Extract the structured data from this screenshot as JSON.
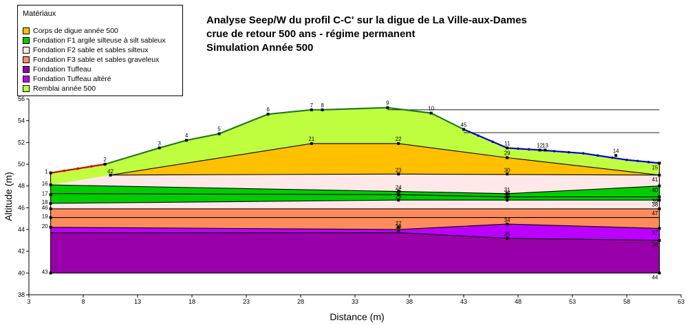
{
  "legend": {
    "title": "Matériaux",
    "items": [
      {
        "label": "Corps de digue année 500",
        "color": "#FFC000"
      },
      {
        "label": "Fondation F1 argile silteuse à silt sableux",
        "color": "#00CC00"
      },
      {
        "label": "Fondation F2 sable et sables silteux",
        "color": "#FFE8E8"
      },
      {
        "label": "Fondation F3 sable et sables graveleux",
        "color": "#FF8C5A"
      },
      {
        "label": "Fondation Tuffeau",
        "color": "#9900AA"
      },
      {
        "label": "Fondation Tuffeau altéré",
        "color": "#BB00FF"
      },
      {
        "label": "Remblai année 500",
        "color": "#C0FF40"
      }
    ]
  },
  "title": {
    "line1": "Analyse Seep/W du profil C-C' sur la digue de La Ville-aux-Dames",
    "line2": "crue de retour 500 ans - régime permanent",
    "line3": "Simulation Année 500"
  },
  "chart_data": {
    "type": "cross-section",
    "xlabel": "Distance (m)",
    "ylabel": "Altitude (m)",
    "xlim": [
      3,
      63
    ],
    "ylim": [
      38,
      56
    ],
    "xticks": [
      "3",
      "8",
      "13",
      "18",
      "23",
      "28",
      "33",
      "38",
      "43",
      "48",
      "53",
      "58",
      "63"
    ],
    "yticks": [
      "38",
      "40",
      "42",
      "44",
      "46",
      "48",
      "50",
      "52",
      "54",
      "56"
    ],
    "layers": [
      {
        "name": "Fondation Tuffeau",
        "color": "#9900AA",
        "top": [
          [
            5,
            43.7
          ],
          [
            37,
            43.7
          ],
          [
            47,
            43.2
          ],
          [
            61,
            43.0
          ]
        ],
        "bottom": [
          [
            5,
            40.0
          ],
          [
            61,
            40.0
          ]
        ]
      },
      {
        "name": "Fondation Tuffeau altéré",
        "color": "#BB00FF",
        "top": [
          [
            5,
            44.2
          ],
          [
            37,
            44.0
          ],
          [
            47,
            44.5
          ],
          [
            61,
            44.1
          ]
        ],
        "bottom": [
          [
            5,
            43.7
          ],
          [
            37,
            43.7
          ],
          [
            47,
            43.2
          ],
          [
            61,
            43.0
          ]
        ]
      },
      {
        "name": "Fondation F3 sable et sables graveleux",
        "color": "#FF8C5A",
        "top": [
          [
            5,
            45.9
          ],
          [
            61,
            45.9
          ]
        ],
        "bottom": [
          [
            5,
            44.2
          ],
          [
            37,
            44.0
          ],
          [
            47,
            44.5
          ],
          [
            61,
            44.1
          ]
        ]
      },
      {
        "name": "Fondation F2 sable et sables silteux",
        "color": "#FFE8E8",
        "top": [
          [
            5,
            46.4
          ],
          [
            37,
            46.7
          ],
          [
            61,
            46.7
          ]
        ],
        "bottom": [
          [
            5,
            45.9
          ],
          [
            61,
            45.9
          ]
        ]
      },
      {
        "name": "Fondation F1 argile silteuse à silt sableux",
        "color": "#00CC00",
        "top": [
          [
            5,
            48.1
          ],
          [
            37,
            47.5
          ],
          [
            47,
            47.3
          ],
          [
            61,
            48.0
          ]
        ],
        "bottom": [
          [
            5,
            46.4
          ],
          [
            37,
            46.7
          ],
          [
            61,
            46.7
          ]
        ]
      },
      {
        "name": "Fondation F2 sable et sables silteux",
        "color": "#FFE8E8",
        "top": [
          [
            5,
            48.1
          ],
          [
            10.5,
            49.0
          ],
          [
            37,
            49.1
          ],
          [
            61,
            49.0
          ]
        ],
        "bottom": [
          [
            5,
            48.1
          ],
          [
            37,
            47.5
          ],
          [
            47,
            47.3
          ],
          [
            61,
            48.0
          ]
        ]
      },
      {
        "name": "Corps de digue année 500",
        "color": "#FFC000",
        "top": [
          [
            10.5,
            49.0
          ],
          [
            29,
            51.9
          ],
          [
            37,
            51.9
          ],
          [
            47,
            50.6
          ],
          [
            61,
            49.0
          ]
        ],
        "bottom": [
          [
            61,
            49.0
          ],
          [
            37,
            49.1
          ],
          [
            10.5,
            49.0
          ]
        ]
      },
      {
        "name": "Remblai année 500",
        "color": "#C0FF40",
        "top": [
          [
            5,
            49.2
          ],
          [
            10,
            50.0
          ],
          [
            15,
            51.5
          ],
          [
            17.5,
            52.2
          ],
          [
            20.5,
            52.8
          ],
          [
            25,
            54.6
          ],
          [
            29,
            55.0
          ],
          [
            30,
            55.0
          ],
          [
            36,
            55.2
          ],
          [
            40,
            54.7
          ],
          [
            43,
            53.2
          ],
          [
            47,
            51.5
          ],
          [
            50,
            51.3
          ],
          [
            54,
            51.0
          ],
          [
            58,
            50.4
          ],
          [
            61,
            50.1
          ]
        ],
        "bottom": [
          [
            61,
            49.0
          ],
          [
            47,
            50.6
          ],
          [
            37,
            51.9
          ],
          [
            29,
            51.9
          ],
          [
            10.5,
            49.0
          ],
          [
            5,
            48.1
          ]
        ]
      }
    ],
    "interfaces": [
      [
        [
          5,
          48.1
        ],
        [
          37,
          47.5
        ],
        [
          47,
          47.3
        ],
        [
          61,
          48.0
        ]
      ],
      [
        [
          5,
          46.4
        ],
        [
          37,
          46.7
        ],
        [
          61,
          46.7
        ]
      ],
      [
        [
          5,
          45.9
        ],
        [
          61,
          45.9
        ]
      ],
      [
        [
          5,
          44.2
        ],
        [
          37,
          44.0
        ],
        [
          47,
          44.5
        ],
        [
          61,
          44.1
        ]
      ],
      [
        [
          5,
          43.7
        ],
        [
          37,
          43.7
        ],
        [
          47,
          43.2
        ],
        [
          61,
          43.0
        ]
      ],
      [
        [
          5,
          49.2
        ],
        [
          5,
          40.0
        ],
        [
          61,
          40.0
        ],
        [
          61,
          50.1
        ]
      ],
      [
        [
          10.5,
          49.0
        ],
        [
          37,
          49.1
        ],
        [
          61,
          49.0
        ]
      ],
      [
        [
          10.5,
          49.0
        ],
        [
          29,
          51.9
        ],
        [
          37,
          51.9
        ],
        [
          47,
          50.6
        ],
        [
          61,
          49.0
        ]
      ],
      [
        [
          5,
          47.3
        ],
        [
          37,
          47.2
        ],
        [
          47,
          47.0
        ],
        [
          61,
          47.0
        ]
      ],
      [
        [
          5,
          45.1
        ],
        [
          61,
          45.1
        ]
      ]
    ],
    "horizontal_lines": [
      [
        [
          36,
          55.0
        ],
        [
          61,
          55.0
        ]
      ],
      [
        [
          43,
          52.9
        ],
        [
          61,
          52.9
        ]
      ]
    ],
    "crest_line": [
      [
        10,
        50.0
      ],
      [
        15,
        51.5
      ],
      [
        17.5,
        52.2
      ],
      [
        20.5,
        52.8
      ],
      [
        25,
        54.6
      ],
      [
        29,
        55.0
      ],
      [
        30,
        55.0
      ],
      [
        36,
        55.2
      ],
      [
        40,
        54.7
      ],
      [
        43,
        53.2
      ]
    ],
    "upstream_line": [
      [
        5,
        49.2
      ],
      [
        10,
        50.0
      ]
    ],
    "downstream_line": [
      [
        43,
        53.2
      ],
      [
        47,
        51.5
      ],
      [
        50,
        51.3
      ],
      [
        54,
        51.0
      ],
      [
        58,
        50.4
      ],
      [
        61,
        50.1
      ]
    ],
    "nodes": [
      {
        "id": "1",
        "x": 5,
        "y": 49.2
      },
      {
        "id": "2",
        "x": 10,
        "y": 50.0
      },
      {
        "id": "3",
        "x": 15,
        "y": 51.5
      },
      {
        "id": "4",
        "x": 17.5,
        "y": 52.2
      },
      {
        "id": "5",
        "x": 20.5,
        "y": 52.8
      },
      {
        "id": "6",
        "x": 25,
        "y": 54.6
      },
      {
        "id": "7",
        "x": 29,
        "y": 55.0
      },
      {
        "id": "8",
        "x": 30,
        "y": 55.0
      },
      {
        "id": "9",
        "x": 36,
        "y": 55.2
      },
      {
        "id": "10",
        "x": 40,
        "y": 54.7
      },
      {
        "id": "45",
        "x": 43,
        "y": 53.2
      },
      {
        "id": "11",
        "x": 47,
        "y": 51.5
      },
      {
        "id": "12",
        "x": 50,
        "y": 51.3
      },
      {
        "id": "13",
        "x": 50.5,
        "y": 51.3
      },
      {
        "id": "14",
        "x": 57,
        "y": 50.8
      },
      {
        "id": "15",
        "x": 61,
        "y": 50.1
      },
      {
        "id": "16",
        "x": 5,
        "y": 48.1
      },
      {
        "id": "42",
        "x": 10.5,
        "y": 49.0
      },
      {
        "id": "21",
        "x": 29,
        "y": 51.9
      },
      {
        "id": "22",
        "x": 37,
        "y": 51.9
      },
      {
        "id": "29",
        "x": 47,
        "y": 50.6
      },
      {
        "id": "23",
        "x": 37,
        "y": 49.1
      },
      {
        "id": "30",
        "x": 47,
        "y": 49.1
      },
      {
        "id": "41",
        "x": 61,
        "y": 49.0
      },
      {
        "id": "40",
        "x": 61,
        "y": 48.0
      },
      {
        "id": "24",
        "x": 37,
        "y": 47.5
      },
      {
        "id": "25",
        "x": 37,
        "y": 47.2
      },
      {
        "id": "31",
        "x": 47,
        "y": 47.3
      },
      {
        "id": "32",
        "x": 47,
        "y": 47.0
      },
      {
        "id": "39",
        "x": 61,
        "y": 47.0
      },
      {
        "id": "17",
        "x": 5,
        "y": 47.2
      },
      {
        "id": "18",
        "x": 5,
        "y": 46.4
      },
      {
        "id": "26",
        "x": 37,
        "y": 46.7
      },
      {
        "id": "33",
        "x": 47,
        "y": 46.7
      },
      {
        "id": "38",
        "x": 61,
        "y": 46.7
      },
      {
        "id": "46",
        "x": 5,
        "y": 45.9
      },
      {
        "id": "47",
        "x": 61,
        "y": 45.9
      },
      {
        "id": "19",
        "x": 5,
        "y": 45.1
      },
      {
        "id": "20",
        "x": 5,
        "y": 44.2
      },
      {
        "id": "27",
        "x": 37,
        "y": 44.2
      },
      {
        "id": "28",
        "x": 37,
        "y": 43.9
      },
      {
        "id": "34",
        "x": 47,
        "y": 44.5
      },
      {
        "id": "35",
        "x": 47,
        "y": 43.2
      },
      {
        "id": "37",
        "x": 61,
        "y": 44.1
      },
      {
        "id": "36",
        "x": 61,
        "y": 43.0
      },
      {
        "id": "43",
        "x": 5,
        "y": 40.0
      },
      {
        "id": "44",
        "x": 61,
        "y": 40.0
      }
    ]
  }
}
